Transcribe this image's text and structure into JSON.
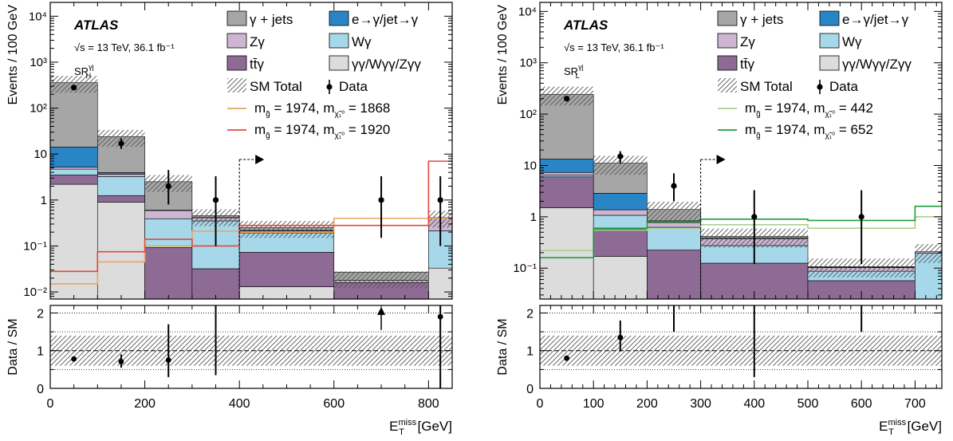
{
  "legend": {
    "gamma_jets": "γ + jets",
    "e_fakes": "e→γ/jet→γ",
    "zgamma": "Zγ",
    "wgamma": "Wγ",
    "ttgamma": "tt̄γ",
    "multiboson": "γγ/Wγγ/Zγγ",
    "sm_total": "SM Total",
    "data": "Data"
  },
  "colors": {
    "gamma_jets": "#a6a6a6",
    "e_fakes": "#2a85c6",
    "zgamma": "#cdb6d2",
    "wgamma": "#a6d8ea",
    "ttgamma": "#8e6b94",
    "multiboson": "#dcdcdc"
  },
  "chart_data": [
    {
      "type": "bar",
      "subtype": "stacked-histogram-log",
      "experiment": "ATLAS",
      "energy_lumi": "√s = 13 TeV, 36.1 fb⁻¹",
      "region": "SR",
      "region_sup": "γj",
      "region_sub": "H",
      "xlabel": "E",
      "xlabel_sup": "miss",
      "xlabel_sub": "T",
      "xlabel_unit": "[GeV]",
      "ylabel": "Events / 100 GeV",
      "ratio_ylabel": "Data / SM",
      "xlim": [
        0,
        850
      ],
      "ylim": [
        0.007,
        20000
      ],
      "yscale": "log",
      "ratio_ylim": [
        0,
        2.2
      ],
      "bin_edges": [
        0,
        100,
        200,
        300,
        400,
        600,
        800,
        850
      ],
      "x_ticks": [
        0,
        200,
        400,
        600,
        800
      ],
      "y_ticks": [
        "10⁻²",
        "10⁻¹",
        "1",
        "10",
        "10²",
        "10³",
        "10⁴"
      ],
      "ratio_ticks": [
        0,
        1,
        2
      ],
      "stack": {
        "multiboson": [
          2.2,
          0.9,
          0.007,
          0.007,
          0.013,
          0.007,
          0.033
        ],
        "ttgamma": [
          1.3,
          0.35,
          0.085,
          0.025,
          0.06,
          0.009,
          0.0
        ],
        "wgamma": [
          1.2,
          2.0,
          0.3,
          0.32,
          0.12,
          0.0,
          0.18
        ],
        "zgamma": [
          0.5,
          0.4,
          0.2,
          0.06,
          0.02,
          0.002,
          0.2
        ],
        "e_fakes": [
          9,
          0.3,
          0.01,
          0.005,
          0.005,
          0.0,
          0.0
        ],
        "gamma_jets": [
          345,
          20,
          1.9,
          0.04,
          0.035,
          0.009,
          0.0
        ]
      },
      "sm_total": [
        360,
        24,
        2.5,
        0.45,
        0.25,
        0.02,
        0.42
      ],
      "sm_unc_frac": 0.4,
      "data": [
        {
          "x": 50,
          "y": 280,
          "lo": 260,
          "hi": 300
        },
        {
          "x": 150,
          "y": 17,
          "lo": 13,
          "hi": 22
        },
        {
          "x": 250,
          "y": 2,
          "lo": 0.8,
          "hi": 4.5
        },
        {
          "x": 350,
          "y": 1,
          "lo": 0.1,
          "hi": 3.3
        },
        {
          "x": 700,
          "y": 1,
          "lo": 0.15,
          "hi": 3.3
        },
        {
          "x": 825,
          "y": 1,
          "lo": 0.1,
          "hi": 3.3
        }
      ],
      "ratio": [
        {
          "x": 50,
          "y": 0.78,
          "lo": 0.74,
          "hi": 0.82
        },
        {
          "x": 150,
          "y": 0.71,
          "lo": 0.55,
          "hi": 0.9
        },
        {
          "x": 250,
          "y": 0.75,
          "lo": 0.3,
          "hi": 1.7
        },
        {
          "x": 350,
          "y": 2.2,
          "lo": 0.35,
          "hi": 2.2
        },
        {
          "x": 825,
          "y": 1.9,
          "lo": 0.0,
          "hi": 2.2
        }
      ],
      "ratio_arrow": {
        "x": 700,
        "y": 1.85
      },
      "signals": [
        {
          "label": "m_g̃ = 1974, m_χ̃₁⁰ = 1868",
          "color": "#e7a75b",
          "values": [
            0.015,
            0.045,
            0.1,
            0.21,
            0.2,
            0.4,
            0.4
          ]
        },
        {
          "label": "m_g̃ = 1974, m_χ̃₁⁰ = 1920",
          "color": "#e04a3a",
          "values": [
            0.028,
            0.075,
            0.14,
            0.1,
            0.28,
            0.28,
            7.0
          ]
        }
      ],
      "signal_labels": [
        {
          "pre": "m",
          "sub1": "g̃",
          "mid": " = 1974, m",
          "sub2": "χ̃₁⁰",
          "post": " = 1868"
        },
        {
          "pre": "m",
          "sub1": "g̃",
          "mid": " = 1974, m",
          "sub2": "χ̃₁⁰",
          "post": " = 1920"
        }
      ],
      "cut_x": 400
    },
    {
      "type": "bar",
      "subtype": "stacked-histogram-log",
      "experiment": "ATLAS",
      "energy_lumi": "√s = 13 TeV, 36.1 fb⁻¹",
      "region": "SR",
      "region_sup": "γj",
      "region_sub": "L",
      "xlabel": "E",
      "xlabel_sup": "miss",
      "xlabel_sub": "T",
      "xlabel_unit": "[GeV]",
      "ylabel": "Events / 100 GeV",
      "ratio_ylabel": "Data / SM",
      "xlim": [
        0,
        750
      ],
      "ylim": [
        0.025,
        15000
      ],
      "yscale": "log",
      "ratio_ylim": [
        0,
        2.2
      ],
      "bin_edges": [
        0,
        100,
        200,
        300,
        500,
        700,
        750
      ],
      "x_ticks": [
        0,
        100,
        200,
        300,
        400,
        500,
        600,
        700
      ],
      "y_ticks": [
        "10⁻¹",
        "1",
        "10",
        "10²",
        "10³",
        "10⁴"
      ],
      "ratio_ticks": [
        0,
        1,
        2
      ],
      "stack": {
        "multiboson": [
          1.5,
          0.17,
          0.025,
          0.025,
          0.025,
          0.025
        ],
        "ttgamma": [
          4.5,
          0.4,
          0.2,
          0.1,
          0.032,
          0.0
        ],
        "wgamma": [
          0.5,
          0.5,
          0.4,
          0.15,
          0.03,
          0.17
        ],
        "zgamma": [
          0.8,
          0.3,
          0.15,
          0.1,
          0.015,
          0.015
        ],
        "e_fakes": [
          6,
          1.5,
          0.06,
          0.01,
          0.002,
          0.0
        ],
        "gamma_jets": [
          230,
          8.2,
          0.55,
          0.03,
          0.003,
          0.0
        ]
      },
      "sm_total": [
        245,
        11,
        1.4,
        0.42,
        0.11,
        0.21
      ],
      "sm_unc_frac": 0.4,
      "data": [
        {
          "x": 50,
          "y": 200,
          "lo": 185,
          "hi": 215
        },
        {
          "x": 150,
          "y": 15,
          "lo": 11,
          "hi": 19
        },
        {
          "x": 250,
          "y": 4,
          "lo": 2.0,
          "hi": 7
        },
        {
          "x": 400,
          "y": 1,
          "lo": 0.12,
          "hi": 3.3
        },
        {
          "x": 600,
          "y": 1,
          "lo": 0.12,
          "hi": 3.3
        }
      ],
      "ratio": [
        {
          "x": 50,
          "y": 0.8,
          "lo": 0.76,
          "hi": 0.85
        },
        {
          "x": 150,
          "y": 1.35,
          "lo": 0.98,
          "hi": 1.8
        },
        {
          "x": 250,
          "y": 2.2,
          "lo": 1.5,
          "hi": 2.2
        },
        {
          "x": 400,
          "y": 2.2,
          "lo": 0.3,
          "hi": 2.2
        },
        {
          "x": 600,
          "y": 2.2,
          "lo": 1.5,
          "hi": 2.2
        }
      ],
      "signals": [
        {
          "label": "m_g̃ = 1974, m_χ̃₁⁰ = 442",
          "color": "#a9d08e",
          "values": [
            0.22,
            0.55,
            0.6,
            0.7,
            0.6,
            1.0
          ]
        },
        {
          "label": "m_g̃ = 1974, m_χ̃₁⁰ = 652",
          "color": "#1e9e3a",
          "values": [
            0.16,
            0.6,
            0.8,
            0.9,
            0.85,
            1.6
          ]
        }
      ],
      "signal_labels": [
        {
          "pre": "m",
          "sub1": "g̃",
          "mid": " = 1974, m",
          "sub2": "χ̃₁⁰",
          "post": " =  442"
        },
        {
          "pre": "m",
          "sub1": "g̃",
          "mid": " = 1974, m",
          "sub2": "χ̃₁⁰",
          "post": " =  652"
        }
      ],
      "cut_x": 300
    }
  ]
}
